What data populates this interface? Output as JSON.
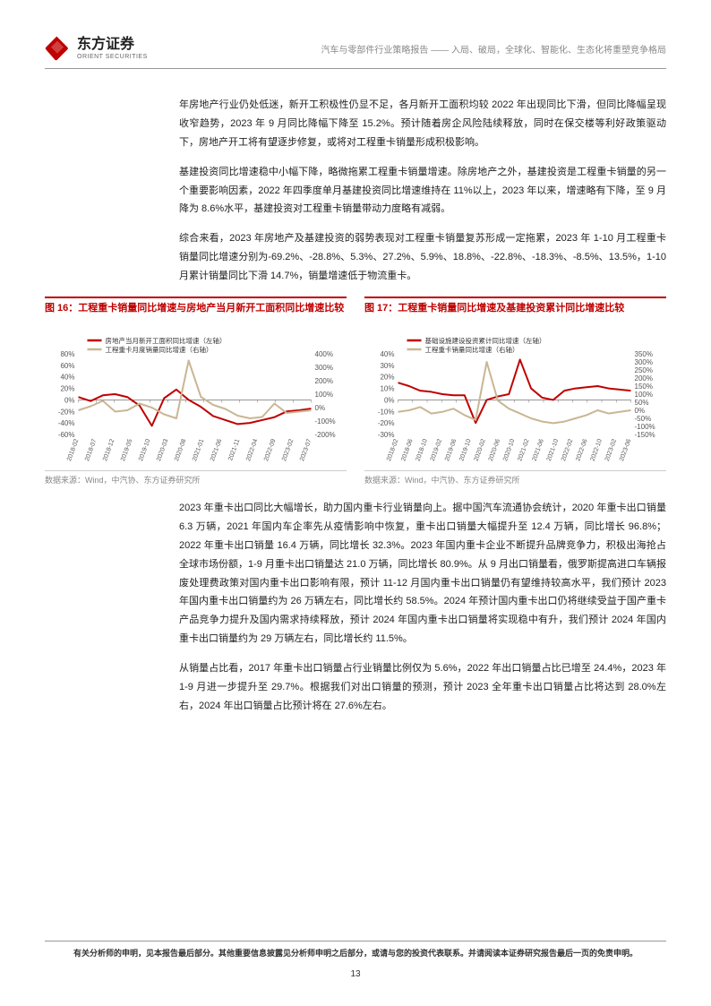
{
  "header": {
    "logo_zh": "东方证券",
    "logo_en": "ORIENT SECURITIES",
    "subtitle": "汽车与零部件行业策略报告 —— 入局、破局，全球化、智能化、生态化将重塑竞争格局"
  },
  "paragraphs": {
    "p1": "年房地产行业仍处低迷，新开工积极性仍显不足，各月新开工面积均较 2022 年出现同比下滑，但同比降幅呈现收窄趋势，2023 年 9 月同比降幅下降至 15.2%。预计随着房企风险陆续释放，同时在保交楼等利好政策驱动下，房地产开工将有望逐步修复，或将对工程重卡销量形成积极影响。",
    "p2": "基建投资同比增速稳中小幅下降，略微拖累工程重卡销量增速。除房地产之外，基建投资是工程重卡销量的另一个重要影响因素，2022 年四季度单月基建投资同比增速维持在 11%以上，2023 年以来，增速略有下降，至 9 月降为 8.6%水平，基建投资对工程重卡销量带动力度略有减弱。",
    "p3": "综合来看，2023 年房地产及基建投资的弱势表现对工程重卡销量复苏形成一定拖累，2023 年 1-10 月工程重卡销量同比增速分别为-69.2%、-28.8%、5.3%、27.2%、5.9%、18.8%、-22.8%、-18.3%、-8.5%、13.5%，1-10 月累计销量同比下滑 14.7%，销量增速低于物流重卡。",
    "p4": "2023 年重卡出口同比大幅增长，助力国内重卡行业销量向上。据中国汽车流通协会统计，2020 年重卡出口销量 6.3 万辆，2021 年国内车企率先从疫情影响中恢复，重卡出口销量大幅提升至 12.4 万辆，同比增长 96.8%；2022 年重卡出口销量 16.4 万辆，同比增长 32.3%。2023 年国内重卡企业不断提升品牌竞争力，积极出海抢占全球市场份额，1-9 月重卡出口销量达 21.0 万辆，同比增长 80.9%。从 9 月出口销量看，俄罗斯提高进口车辆报废处理费政策对国内重卡出口影响有限，预计 11-12 月国内重卡出口销量仍有望维持较高水平，我们预计 2023 年国内重卡出口销量约为 26 万辆左右，同比增长约 58.5%。2024 年预计国内重卡出口仍将继续受益于国产重卡产品竞争力提升及国内需求持续释放，预计 2024 年国内重卡出口销量将实现稳中有升，我们预计 2024 年国内重卡出口销量约为 29 万辆左右，同比增长约 11.5%。",
    "p5": "从销量占比看，2017 年重卡出口销量占行业销量比例仅为 5.6%，2022 年出口销量占比已增至 24.4%，2023 年 1-9 月进一步提升至 29.7%。根据我们对出口销量的预测，预计 2023 全年重卡出口销量占比将达到 28.0%左右，2024 年出口销量占比预计将在 27.6%左右。"
  },
  "chart16": {
    "title": "图 16：工程重卡销量同比增速与房地产当月新开工面积同比增速比较",
    "source": "数据来源：Wind，中汽协、东方证券研究所",
    "legend": [
      {
        "label": "房地产当月新开工面积同比增速（左轴）",
        "color": "#c00000"
      },
      {
        "label": "工程重卡月度销量同比增速（右轴）",
        "color": "#c9b694"
      }
    ],
    "type": "line",
    "x_categories": [
      "2018-02",
      "2018-07",
      "2018-12",
      "2019-05",
      "2019-10",
      "2020-03",
      "2020-08",
      "2021-01",
      "2021-06",
      "2021-11",
      "2022-04",
      "2022-09",
      "2023-02",
      "2023-07"
    ],
    "left_axis": {
      "min": -60,
      "max": 80,
      "step": 20,
      "unit": "%"
    },
    "right_axis": {
      "min": -200,
      "max": 400,
      "step": 100,
      "unit": "%"
    },
    "series": [
      {
        "name": "left",
        "color": "#c00000",
        "width": 2,
        "values_pct_of_left": [
          5,
          -2,
          8,
          10,
          5,
          -10,
          -45,
          3,
          18,
          0,
          -12,
          -28,
          -35,
          -42,
          -40,
          -35,
          -30,
          -20,
          -18,
          -15
        ]
      },
      {
        "name": "right",
        "color": "#c9b694",
        "width": 2,
        "values_pct_of_right": [
          -20,
          10,
          50,
          -30,
          -20,
          30,
          0,
          -50,
          -80,
          350,
          80,
          20,
          -10,
          -60,
          -80,
          -70,
          30,
          -40,
          -30,
          -20
        ]
      }
    ],
    "background_color": "#ffffff",
    "grid_color": "#dddddd",
    "label_fontsize": 8
  },
  "chart17": {
    "title": "图 17：工程重卡销量同比增速及基建投资累计同比增速比较",
    "source": "数据来源：Wind，中汽协、东方证券研究所",
    "legend": [
      {
        "label": "基础设施建设投资累计同比增速（左轴）",
        "color": "#c00000"
      },
      {
        "label": "工程重卡销量同比增速（右轴）",
        "color": "#c9b694"
      }
    ],
    "type": "line",
    "x_categories": [
      "2018-02",
      "2018-06",
      "2018-10",
      "2019-02",
      "2019-06",
      "2019-10",
      "2020-02",
      "2020-06",
      "2020-10",
      "2021-02",
      "2021-06",
      "2021-10",
      "2022-02",
      "2022-06",
      "2022-10",
      "2023-02",
      "2023-06"
    ],
    "left_axis": {
      "min": -30,
      "max": 40,
      "step": 10,
      "unit": "%"
    },
    "right_axis": {
      "min": -150,
      "max": 350,
      "step": 50,
      "unit": "%"
    },
    "series": [
      {
        "name": "left",
        "color": "#c00000",
        "width": 2,
        "values_pct_of_left": [
          15,
          12,
          8,
          7,
          5,
          4,
          4,
          -20,
          0,
          3,
          5,
          35,
          10,
          2,
          0,
          8,
          10,
          11,
          12,
          10,
          9,
          8
        ]
      },
      {
        "name": "right",
        "color": "#c9b694",
        "width": 2,
        "values_pct_of_right": [
          -10,
          0,
          20,
          -20,
          -10,
          10,
          -30,
          -60,
          300,
          60,
          10,
          -20,
          -50,
          -70,
          -80,
          -70,
          -50,
          -30,
          0,
          -20,
          -10,
          0
        ]
      }
    ],
    "background_color": "#ffffff",
    "grid_color": "#dddddd",
    "label_fontsize": 8
  },
  "footer": {
    "disclaimer": "有关分析师的申明，见本报告最后部分。其他重要信息披露见分析师申明之后部分，或请与您的投资代表联系。并请阅读本证券研究报告最后一页的免责申明。",
    "page": "13"
  },
  "colors": {
    "brand_red": "#c00000",
    "text": "#222222",
    "muted": "#888888",
    "grid": "#dddddd",
    "tan": "#c9b694"
  }
}
